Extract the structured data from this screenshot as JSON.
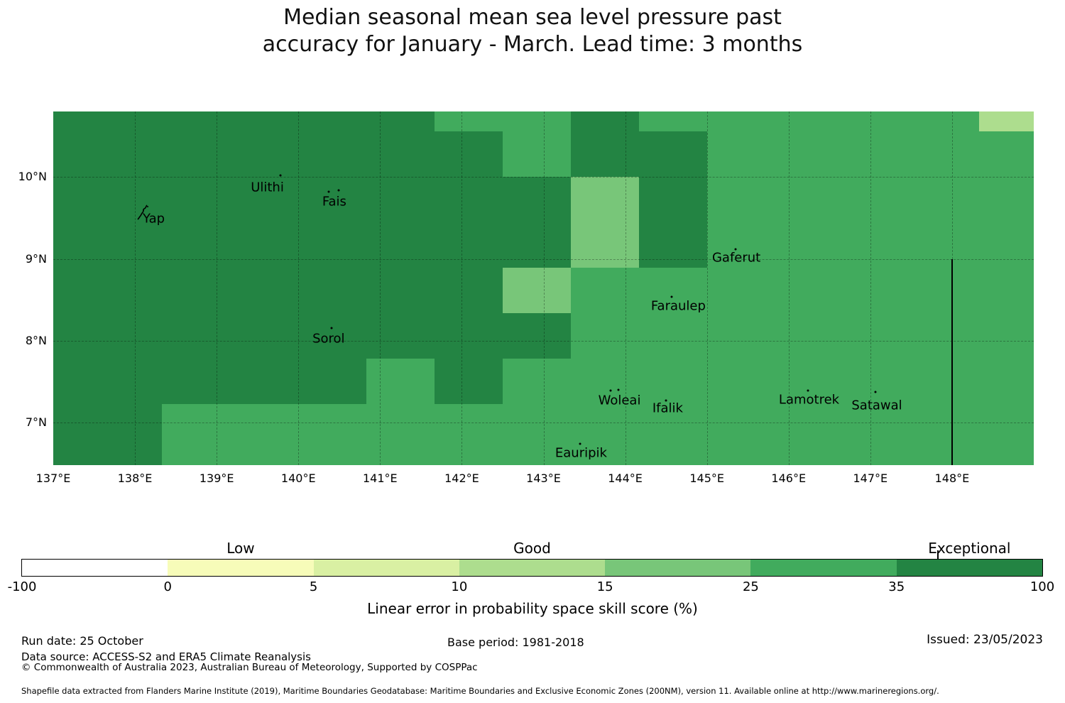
{
  "title": {
    "line1": "Median seasonal mean sea level pressure past",
    "line2": "accuracy for January - March. Lead time: 3 months"
  },
  "chart_data": {
    "type": "heatmap",
    "subtype": "gridded-skill-map",
    "lon_range": [
      137,
      149
    ],
    "lat_range": [
      6.48,
      10.8
    ],
    "grid": {
      "lon_edges": [
        137,
        137.5,
        138.333,
        139.167,
        140,
        140.833,
        141.667,
        142.5,
        143.333,
        144.167,
        145,
        145.833,
        146.667,
        147.5,
        148.333,
        149
      ],
      "lat_edges": [
        10.8,
        10.556,
        10,
        9.444,
        8.889,
        8.333,
        7.778,
        7.222,
        6.667,
        6.48
      ],
      "classes": [
        [
          "A",
          "A",
          "A",
          "A",
          "A",
          "A",
          "B",
          "B",
          "A",
          "B",
          "B",
          "B",
          "B",
          "B",
          "D"
        ],
        [
          "A",
          "A",
          "A",
          "A",
          "A",
          "A",
          "A",
          "B",
          "A",
          "A",
          "B",
          "B",
          "B",
          "B",
          "B"
        ],
        [
          "A",
          "A",
          "A",
          "A",
          "A",
          "A",
          "A",
          "A",
          "C",
          "A",
          "B",
          "B",
          "B",
          "B",
          "B"
        ],
        [
          "A",
          "A",
          "A",
          "A",
          "A",
          "A",
          "A",
          "A",
          "C",
          "A",
          "B",
          "B",
          "B",
          "B",
          "B"
        ],
        [
          "A",
          "A",
          "A",
          "A",
          "A",
          "A",
          "A",
          "C",
          "B",
          "B",
          "B",
          "B",
          "B",
          "B",
          "B"
        ],
        [
          "A",
          "A",
          "A",
          "A",
          "A",
          "A",
          "A",
          "A",
          "B",
          "B",
          "B",
          "B",
          "B",
          "B",
          "B"
        ],
        [
          "A",
          "A",
          "A",
          "A",
          "A",
          "B",
          "A",
          "B",
          "B",
          "B",
          "B",
          "B",
          "B",
          "B",
          "B"
        ],
        [
          "A",
          "A",
          "B",
          "B",
          "B",
          "B",
          "B",
          "B",
          "B",
          "B",
          "B",
          "B",
          "B",
          "B",
          "B"
        ],
        [
          "A",
          "A",
          "B",
          "B",
          "B",
          "B",
          "B",
          "B",
          "B",
          "B",
          "B",
          "B",
          "B",
          "B",
          "B"
        ]
      ]
    },
    "palette": {
      "A": "#238443",
      "B": "#41ab5d",
      "C": "#78c679",
      "D": "#addd8e"
    },
    "class_score_ranges": {
      "A": "35-100",
      "B": "25-35",
      "C": "15-25",
      "D": "10-15"
    },
    "graticule": {
      "lons": [
        138,
        139,
        140,
        141,
        142,
        143,
        144,
        145,
        146,
        147,
        148
      ],
      "lats": [
        7,
        8,
        9,
        10
      ]
    },
    "eez_boundary": {
      "lon": 148,
      "lat_from": 9.0,
      "lat_to": 6.48
    },
    "x_axis": {
      "tick_lons": [
        137,
        138,
        139,
        140,
        141,
        142,
        143,
        144,
        145,
        146,
        147,
        148
      ],
      "tick_labels": [
        "137°E",
        "138°E",
        "139°E",
        "140°E",
        "141°E",
        "142°E",
        "143°E",
        "144°E",
        "145°E",
        "146°E",
        "147°E",
        "148°E"
      ]
    },
    "y_axis": {
      "tick_lats": [
        7,
        8,
        9,
        10
      ],
      "tick_labels": [
        "7°N",
        "8°N",
        "9°N",
        "10°N"
      ]
    },
    "islands": [
      {
        "label": "Yap",
        "lon": 138.23,
        "lat": 9.49,
        "shape": true,
        "shape_lon": 138.1,
        "shape_lat": 9.57,
        "dots": []
      },
      {
        "label": "Ulithi",
        "lon": 139.62,
        "lat": 9.87,
        "dots": [
          [
            139.78,
            10.02
          ]
        ]
      },
      {
        "label": "Fais",
        "lon": 140.44,
        "lat": 9.7,
        "dots": [
          [
            140.37,
            9.82
          ],
          [
            140.49,
            9.84
          ]
        ]
      },
      {
        "label": "Sorol",
        "lon": 140.37,
        "lat": 8.02,
        "dots": [
          [
            140.41,
            8.15
          ]
        ]
      },
      {
        "label": "Gaferut",
        "lon": 145.36,
        "lat": 9.01,
        "dots": [
          [
            145.35,
            9.12
          ]
        ]
      },
      {
        "label": "Faraulep",
        "lon": 144.65,
        "lat": 8.42,
        "dots": [
          [
            144.57,
            8.54
          ]
        ]
      },
      {
        "label": "Woleai",
        "lon": 143.93,
        "lat": 7.27,
        "dots": [
          [
            143.82,
            7.39
          ],
          [
            143.92,
            7.4
          ]
        ]
      },
      {
        "label": "Ifalik",
        "lon": 144.52,
        "lat": 7.17,
        "dots": [
          [
            144.5,
            7.27
          ]
        ]
      },
      {
        "label": "Eauripik",
        "lon": 143.46,
        "lat": 6.63,
        "dots": [
          [
            143.45,
            6.74
          ]
        ]
      },
      {
        "label": "Lamotrek",
        "lon": 146.25,
        "lat": 7.28,
        "dots": [
          [
            146.24,
            7.39
          ]
        ]
      },
      {
        "label": "Satawal",
        "lon": 147.08,
        "lat": 7.21,
        "dots": [
          [
            147.06,
            7.37
          ]
        ]
      }
    ]
  },
  "colorbar": {
    "segment_colors": [
      "#ffffff",
      "#f7fcb9",
      "#d9f0a3",
      "#addd8e",
      "#78c679",
      "#41ab5d",
      "#238443"
    ],
    "tick_labels": [
      "-100",
      "0",
      "5",
      "10",
      "15",
      "25",
      "35",
      "100"
    ],
    "tick_values": [
      -100,
      0,
      5,
      10,
      15,
      25,
      35,
      100
    ],
    "category_labels": [
      {
        "text": "Low",
        "segment": 1
      },
      {
        "text": "Good",
        "segment": 3
      },
      {
        "text": "Exceptional",
        "segment": 6
      }
    ],
    "marker_value": 53,
    "axis_label": "Linear error in probability space skill score (%)"
  },
  "footer": {
    "run_date": "Run date: 25 October",
    "data_source": "Data source: ACCESS-S2 and ERA5 Climate Reanalysis",
    "copyright": "© Commonwealth of Australia 2023, Australian Bureau of Meteorology, Supported by COSPPac",
    "base_period": "Base period: 1981-2018",
    "issued": "Issued: 23/05/2023",
    "shapefile_note": "Shapefile data extracted from Flanders Marine Institute (2019), Maritime Boundaries Geodatabase: Maritime Boundaries and Exclusive Economic Zones (200NM), version 11. Available online at http://www.marineregions.org/."
  }
}
